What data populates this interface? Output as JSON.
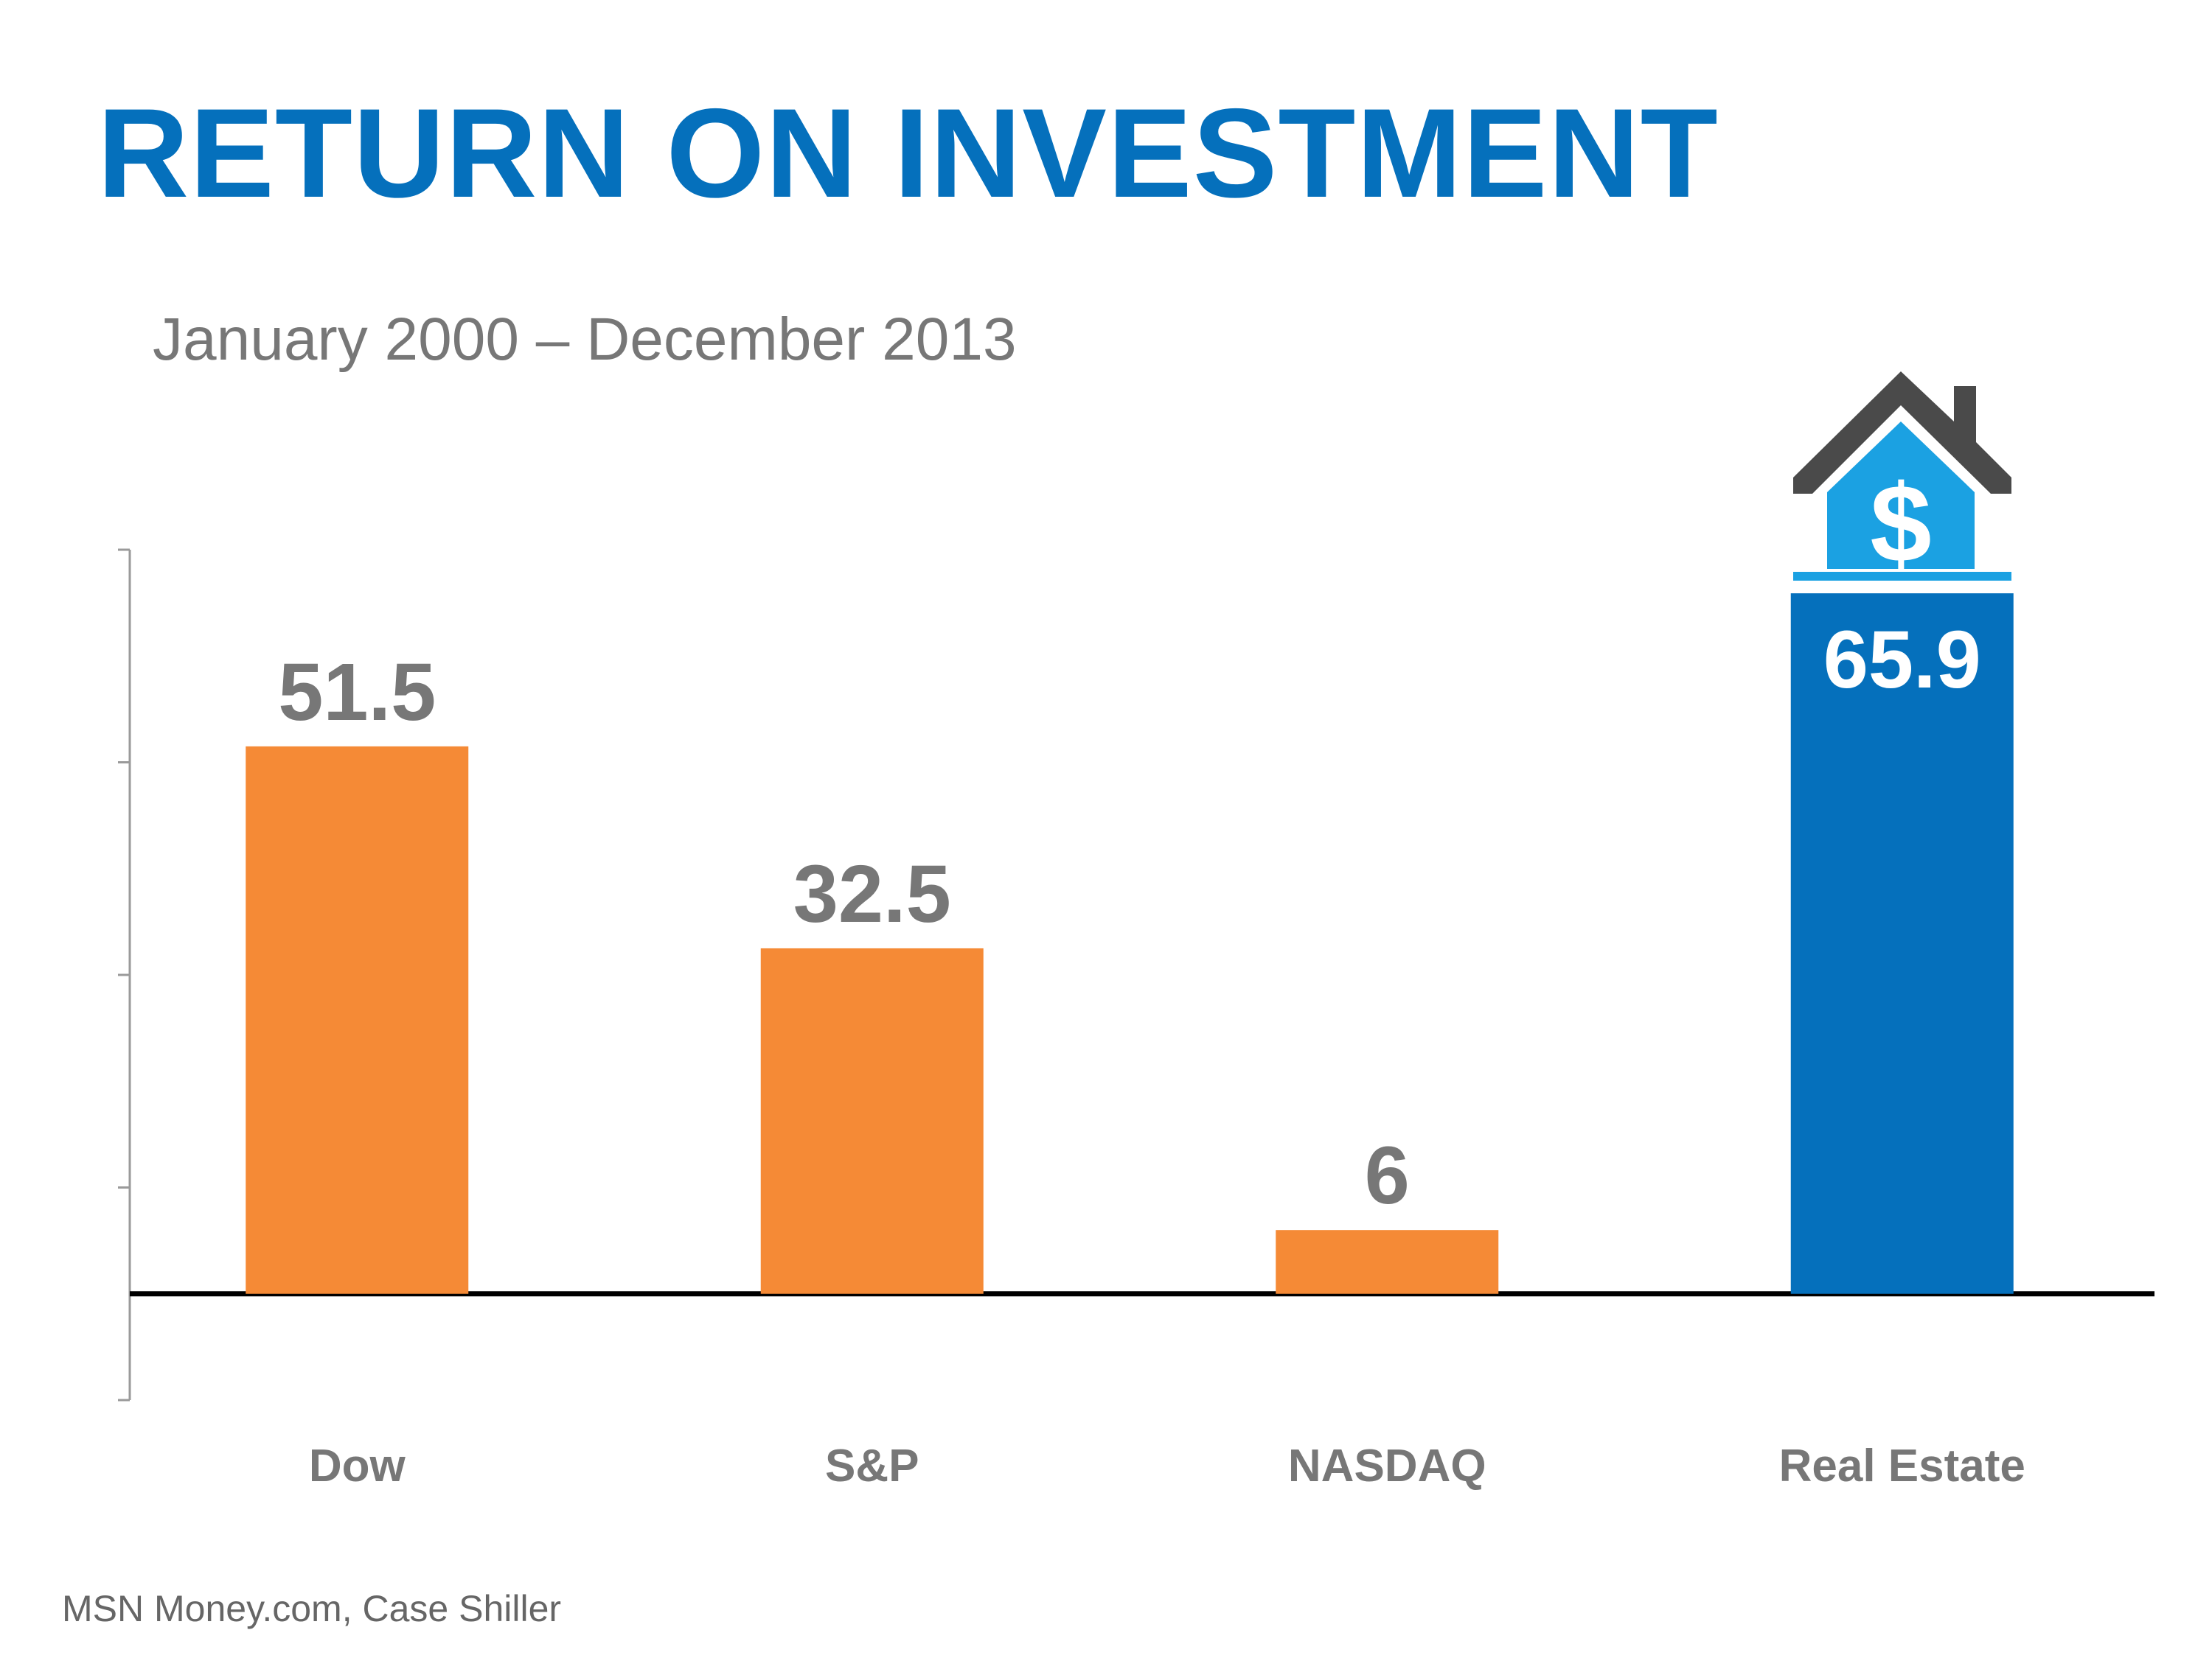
{
  "title": "RETURN ON INVESTMENT",
  "subtitle": "January 2000 – December 2013",
  "source": "MSN Money.com,  Case Shiller",
  "colors": {
    "title": "#0570BC",
    "subtitle": "#777777",
    "bar_stock": "#F58A36",
    "bar_real_estate": "#0570BC",
    "value_label": "#777777",
    "value_label_highlight": "#FFFFFF",
    "category_label": "#777777",
    "house_roof": "#4A4A4A",
    "house_body": "#1BA1E2"
  },
  "icons": [
    "house-dollar-icon"
  ],
  "chart_data": {
    "type": "bar",
    "categories": [
      "Dow",
      "S&P",
      "NASDAQ",
      "Real Estate"
    ],
    "values": [
      51.5,
      32.5,
      6,
      65.9
    ],
    "value_labels": [
      "51.5",
      "32.5",
      "6",
      "65.9"
    ],
    "title": "RETURN ON INVESTMENT",
    "subtitle": "January 2000 – December 2013",
    "xlabel": "",
    "ylabel": "",
    "ylim": [
      -10,
      70
    ],
    "grid": false,
    "legend": "none",
    "highlight_category": "Real Estate"
  }
}
